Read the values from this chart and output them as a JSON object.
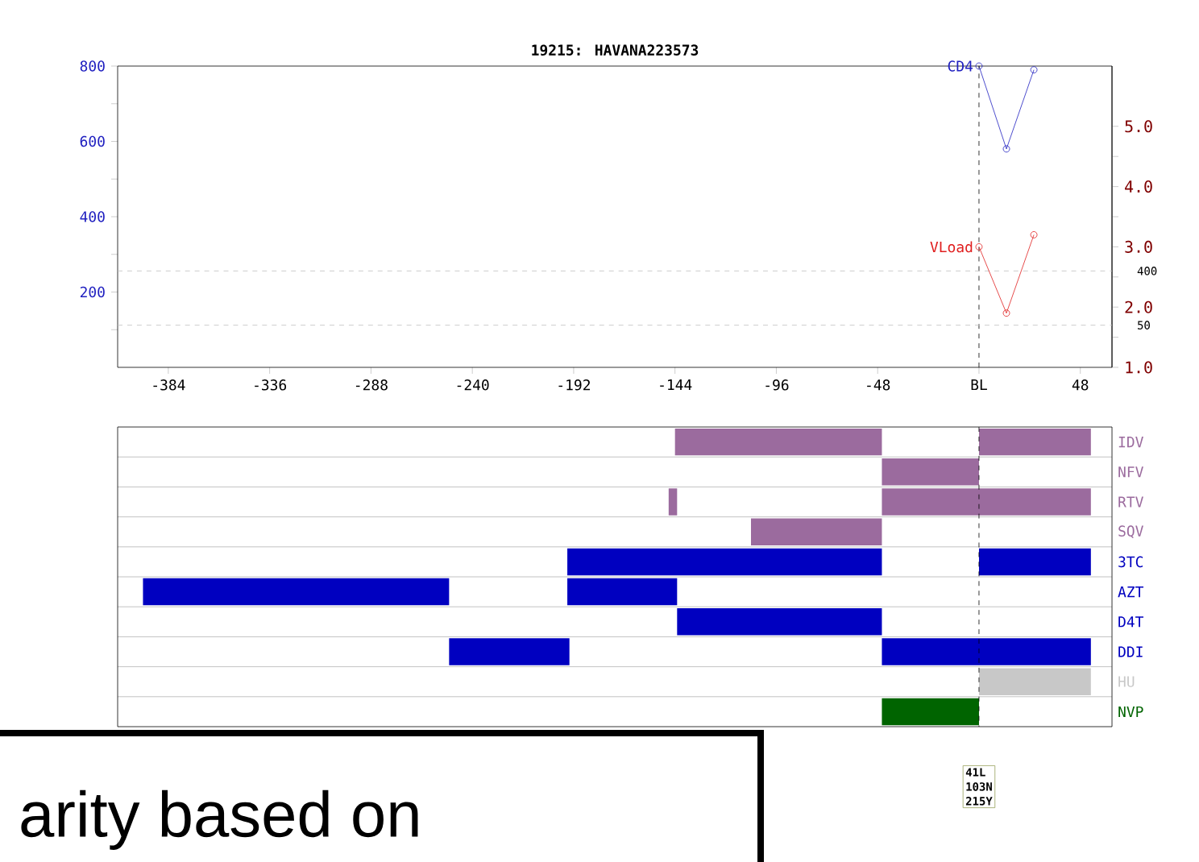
{
  "chart_data": [
    {
      "type": "line",
      "title": "19215: HAVANA223573",
      "x": [
        0,
        13,
        26
      ],
      "xlim": [
        -408,
        63
      ],
      "xticks": [
        -384,
        -336,
        -288,
        -240,
        -192,
        -144,
        -96,
        -48,
        {
          "value": 0,
          "label": "BL"
        },
        48
      ],
      "ylim": [
        0,
        800
      ],
      "yticks": [
        {
          "value": 100,
          "label": null
        },
        200,
        {
          "value": 300,
          "label": null
        },
        400,
        {
          "value": 500,
          "label": null
        },
        600,
        {
          "value": 700,
          "label": null
        },
        800
      ],
      "y2lim": [
        1,
        6
      ],
      "y2ticks": [
        {
          "value": 1,
          "label": "1.0"
        },
        {
          "value": 1.5,
          "label": null
        },
        {
          "value": 2,
          "label": "2.0"
        },
        {
          "value": 2.5,
          "label": null
        },
        {
          "value": 3,
          "label": "3.0"
        },
        {
          "value": 3.5,
          "label": null
        },
        {
          "value": 4,
          "label": "4.0"
        },
        {
          "value": 4.5,
          "label": null
        },
        {
          "value": 5,
          "label": "5.0"
        }
      ],
      "marker": "circle",
      "annotations": [
        "400",
        "50"
      ],
      "ref_lines": [
        {
          "axis": "y2",
          "value": 2.6,
          "color": "#c0c0c0",
          "line_style": "dashed"
        },
        {
          "axis": "y2",
          "value": 1.7,
          "color": "#c0c0c0",
          "line_style": "dashed"
        },
        {
          "axis": "x",
          "value": 0,
          "color": "#000000",
          "line_style": "dashed"
        }
      ],
      "series": [
        {
          "name": "CD4",
          "color": "#2020c0",
          "values": [
            800,
            580,
            790
          ]
        },
        {
          "name": "VLoad",
          "color": "#e02020",
          "axis": "y2",
          "values": [
            3.0,
            1.9,
            3.2
          ]
        }
      ]
    },
    {
      "type": "bar",
      "orientation": "horizontal",
      "categories": [
        "IDV",
        "NFV",
        "RTV",
        "SQV",
        "3TC",
        "AZT",
        "D4T",
        "DDI",
        "HU",
        "NVP"
      ],
      "xlim": [
        -408,
        63
      ],
      "xticks": [
        -384,
        -336,
        -288,
        -240,
        -192,
        -144,
        -96,
        -48,
        {
          "value": 0,
          "label": null
        },
        48
      ],
      "tick_labels": "y",
      "grid": "y",
      "ref_lines": [
        {
          "axis": "x",
          "value": 0,
          "color": "#000000",
          "line_style": "dashed"
        }
      ],
      "series": [
        {
          "colors": [
            "#9b6b9e",
            "#9b6b9e",
            "#9b6b9e",
            "#9b6b9e",
            "#0000c0",
            "#0000c0",
            "#0000c0",
            "#0000c0",
            "#c8c8c8",
            "#006400"
          ],
          "base": [
            -144,
            -46,
            -147,
            -108,
            -195,
            -396,
            -143,
            -251,
            null,
            -46
          ],
          "values": [
            98,
            46,
            4,
            62,
            149,
            145,
            97,
            57,
            null,
            46
          ]
        },
        {
          "colors": [
            "#9b6b9e",
            "#9b6b9e",
            "#9b6b9e",
            "#9b6b9e",
            "#0000c0",
            "#0000c0",
            "#0000c0",
            "#0000c0",
            "#c8c8c8",
            "#006400"
          ],
          "base": [
            0,
            null,
            -46,
            null,
            0,
            -195,
            null,
            -46,
            0,
            null
          ],
          "values": [
            53,
            null,
            99,
            null,
            53,
            52,
            null,
            99,
            53,
            null
          ]
        }
      ],
      "annotations": [
        "41L",
        "103N",
        "215Y",
        "arity based on"
      ]
    }
  ]
}
